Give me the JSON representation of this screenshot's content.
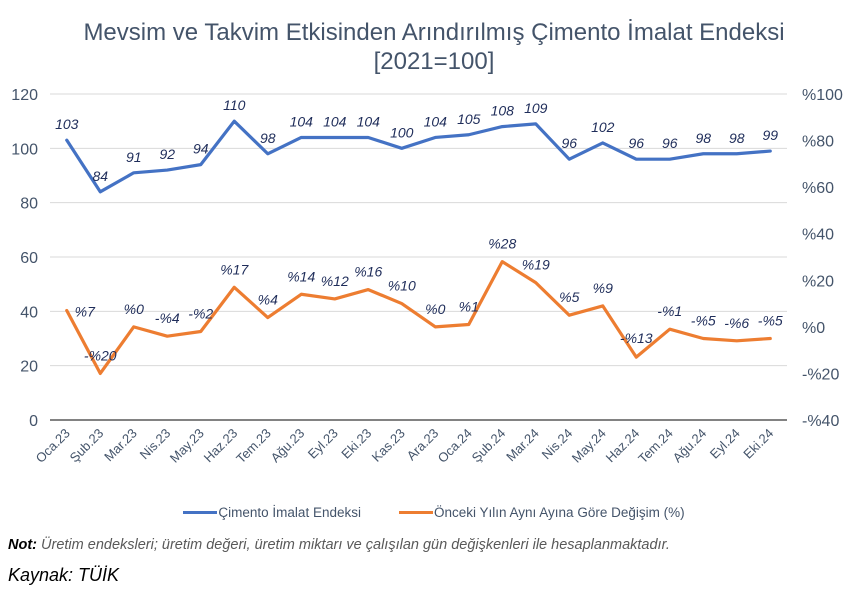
{
  "chart_data": {
    "type": "line",
    "title": "Mevsim ve Takvim Etkisinden Arındırılmış Çimento İmalat Endeksi",
    "subtitle": "[2021=100]",
    "categories": [
      "Oca.23",
      "Şub.23",
      "Mar.23",
      "Nis.23",
      "May.23",
      "Haz.23",
      "Tem.23",
      "Ağu.23",
      "Eyl.23",
      "Eki.23",
      "Kas.23",
      "Ara.23",
      "Oca.24",
      "Şub.24",
      "Mar.24",
      "Nis.24",
      "May.24",
      "Haz.24",
      "Tem.24",
      "Ağu.24",
      "Eyl.24",
      "Eki.24"
    ],
    "series": [
      {
        "name": "Çimento İmalat Endeksi",
        "axis": "left",
        "color": "#4472c4",
        "values": [
          103,
          84,
          91,
          92,
          94,
          110,
          98,
          104,
          104,
          104,
          100,
          104,
          105,
          108,
          109,
          96,
          102,
          96,
          96,
          98,
          98,
          99
        ],
        "labels": [
          "103",
          "84",
          "91",
          "92",
          "94",
          "110",
          "98",
          "104",
          "104",
          "104",
          "100",
          "104",
          "105",
          "108",
          "109",
          "96",
          "102",
          "96",
          "96",
          "98",
          "98",
          "99"
        ]
      },
      {
        "name": "Önceki Yılın Aynı Ayına Göre Değişim (%)",
        "axis": "right",
        "color": "#ed7d31",
        "values": [
          7,
          -20,
          0,
          -4,
          -2,
          17,
          4,
          14,
          12,
          16,
          10,
          0,
          1,
          28,
          19,
          5,
          9,
          -13,
          -1,
          -5,
          -6,
          -5
        ],
        "labels": [
          "%7",
          "-%20",
          "%0",
          "-%4",
          "-%2",
          "%17",
          "%4",
          "%14",
          "%12",
          "%16",
          "%10",
          "%0",
          "%1",
          "%28",
          "%19",
          "%5",
          "%9",
          "-%13",
          "-%1",
          "-%5",
          "-%6",
          "-%5"
        ]
      }
    ],
    "left_axis": {
      "ylim": [
        0,
        120
      ],
      "ticks": [
        0,
        20,
        40,
        60,
        80,
        100,
        120
      ],
      "tick_labels": [
        "0",
        "20",
        "40",
        "60",
        "80",
        "100",
        "120"
      ]
    },
    "right_axis": {
      "ylim": [
        -40,
        100
      ],
      "ticks": [
        -40,
        -20,
        0,
        20,
        40,
        60,
        80,
        100
      ],
      "tick_labels": [
        "-%40",
        "-%20",
        "%0",
        "%20",
        "%40",
        "%60",
        "%80",
        "%100"
      ]
    },
    "xlabel": "",
    "ylabel": "",
    "grid": true,
    "legend_position": "bottom"
  },
  "legend": {
    "item1": "Çimento İmalat Endeksi",
    "item2": "Önceki Yılın Aynı Ayına Göre Değişim (%)"
  },
  "note": {
    "label": "Not:",
    "text": " Üretim endeksleri; üretim değeri, üretim miktarı ve çalışılan gün değişkenleri ile hesaplanmaktadır."
  },
  "source": "Kaynak: TÜİK"
}
